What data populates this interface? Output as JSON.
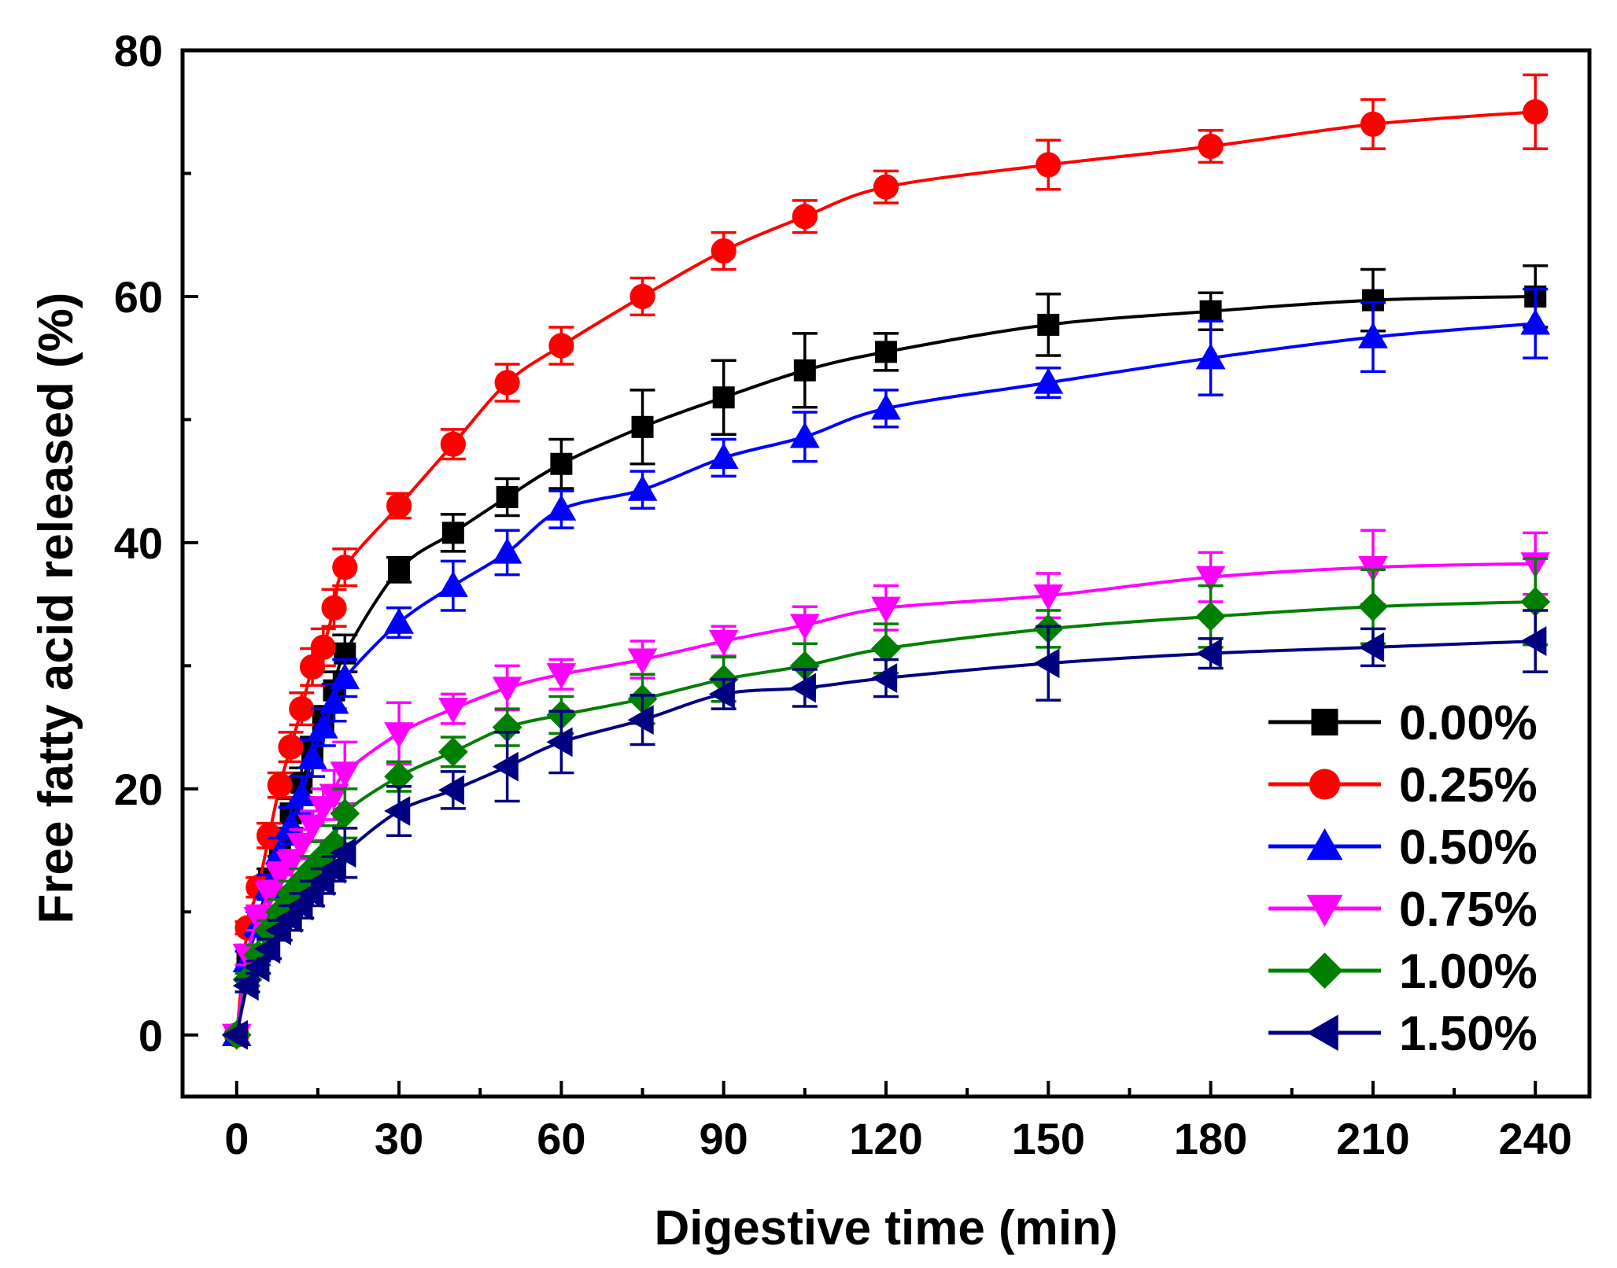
{
  "chart_data": {
    "type": "line",
    "title": "",
    "xlabel": "Digestive time (min)",
    "ylabel": "Free fatty acid released (%)",
    "xlim": [
      -10,
      250
    ],
    "ylim": [
      -5,
      80
    ],
    "xticks": [
      0,
      30,
      60,
      90,
      120,
      150,
      180,
      210,
      240
    ],
    "xtick_labels": [
      "0",
      "30",
      "60",
      "90",
      "120",
      "150",
      "180",
      "210",
      "240"
    ],
    "yticks": [
      0,
      20,
      40,
      60,
      80
    ],
    "ytick_labels": [
      "0",
      "20",
      "40",
      "60",
      "80"
    ],
    "x": [
      0,
      2,
      4,
      6,
      8,
      10,
      12,
      14,
      16,
      18,
      20,
      30,
      40,
      50,
      60,
      75,
      90,
      105,
      120,
      150,
      180,
      210,
      240
    ],
    "grid": false,
    "legend_position": "bottom-right",
    "series": [
      {
        "name": "0.00%",
        "color": "#000000",
        "marker": "square",
        "values": [
          0,
          6.5,
          9.5,
          12.5,
          15.5,
          18.0,
          20.5,
          23.0,
          25.5,
          28.0,
          31.0,
          37.8,
          40.8,
          43.7,
          46.4,
          49.4,
          51.8,
          54.0,
          55.5,
          57.7,
          58.8,
          59.7,
          60.0
        ],
        "errors": [
          0,
          0.8,
          0.8,
          1.0,
          1.0,
          1.2,
          1.2,
          1.2,
          1.2,
          1.5,
          1.5,
          1.0,
          1.5,
          1.5,
          2.0,
          3.0,
          3.0,
          3.0,
          1.5,
          2.5,
          1.5,
          2.5,
          2.5
        ]
      },
      {
        "name": "0.25%",
        "color": "#ff0000",
        "marker": "circle",
        "values": [
          0,
          8.7,
          12.0,
          16.2,
          20.3,
          23.4,
          26.5,
          29.9,
          31.5,
          34.7,
          38.0,
          43.0,
          48.0,
          53.0,
          56.0,
          60.0,
          63.7,
          66.5,
          68.9,
          70.7,
          72.2,
          74.0,
          75.0
        ],
        "errors": [
          0,
          0.5,
          0.8,
          1.0,
          1.0,
          1.2,
          1.3,
          1.5,
          1.5,
          1.5,
          1.5,
          1.0,
          1.2,
          1.5,
          1.5,
          1.5,
          1.5,
          1.3,
          1.3,
          2.0,
          1.3,
          2.0,
          3.0
        ]
      },
      {
        "name": "0.50%",
        "color": "#0000ff",
        "marker": "triangle-up",
        "values": [
          0,
          6.0,
          9.0,
          12.0,
          14.8,
          17.0,
          19.5,
          22.5,
          25.0,
          27.0,
          29.0,
          33.5,
          36.5,
          39.2,
          42.7,
          44.3,
          46.9,
          48.6,
          50.9,
          53.0,
          55.0,
          56.7,
          57.8
        ],
        "errors": [
          0,
          0.8,
          1.0,
          1.0,
          1.2,
          1.5,
          1.5,
          1.5,
          1.5,
          1.5,
          1.5,
          1.2,
          2.0,
          1.8,
          1.5,
          1.5,
          1.5,
          2.0,
          1.5,
          1.2,
          3.0,
          2.8,
          2.8
        ]
      },
      {
        "name": "0.75%",
        "color": "#ff00ff",
        "marker": "triangle-down",
        "values": [
          0,
          6.5,
          9.5,
          11.5,
          13.0,
          14.0,
          15.5,
          17.0,
          18.5,
          19.5,
          21.3,
          24.5,
          26.5,
          28.2,
          29.3,
          30.5,
          32.0,
          33.3,
          34.7,
          35.7,
          37.2,
          38.0,
          38.3
        ],
        "errors": [
          0,
          0.8,
          1.0,
          1.0,
          1.0,
          1.0,
          1.2,
          1.2,
          1.5,
          2.0,
          2.5,
          2.5,
          1.2,
          1.8,
          1.2,
          1.5,
          1.2,
          1.5,
          1.8,
          1.8,
          2.0,
          3.0,
          2.5
        ]
      },
      {
        "name": "1.00%",
        "color": "#008000",
        "marker": "diamond",
        "values": [
          0,
          4.5,
          6.5,
          8.5,
          10.0,
          11.5,
          12.5,
          13.5,
          14.5,
          15.5,
          18.0,
          21.0,
          23.0,
          25.0,
          26.0,
          27.3,
          28.9,
          30.0,
          31.4,
          33.0,
          34.0,
          34.8,
          35.2
        ],
        "errors": [
          0,
          0.5,
          0.8,
          0.8,
          1.0,
          1.0,
          1.0,
          1.0,
          1.2,
          1.5,
          2.0,
          1.2,
          1.2,
          1.5,
          1.5,
          2.0,
          1.8,
          1.8,
          2.0,
          1.5,
          2.5,
          3.0,
          3.5
        ]
      },
      {
        "name": "1.50%",
        "color": "#000080",
        "marker": "triangle-left",
        "values": [
          0,
          4.0,
          5.5,
          7.0,
          8.5,
          9.5,
          10.5,
          11.5,
          12.5,
          13.5,
          14.8,
          18.2,
          19.9,
          21.8,
          23.8,
          25.6,
          27.7,
          28.2,
          29.0,
          30.2,
          31.0,
          31.5,
          32.0
        ],
        "errors": [
          0,
          0.5,
          0.5,
          0.8,
          0.8,
          1.0,
          1.0,
          1.0,
          1.0,
          1.0,
          2.0,
          2.0,
          1.5,
          2.8,
          2.5,
          2.0,
          1.2,
          1.5,
          1.5,
          3.0,
          1.2,
          1.5,
          2.5
        ]
      }
    ]
  }
}
